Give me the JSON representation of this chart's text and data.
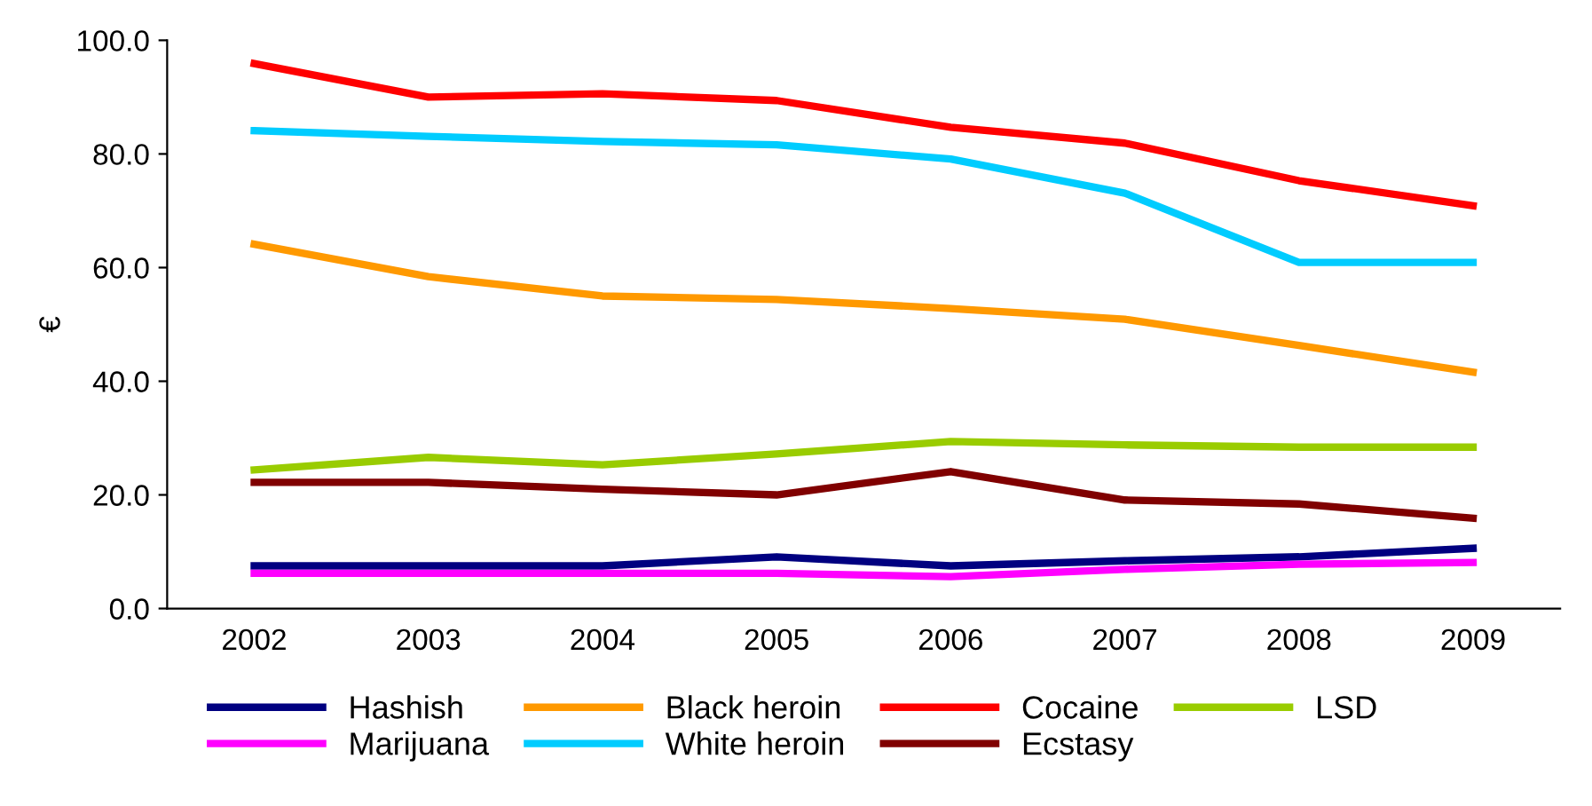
{
  "chart_data": {
    "type": "line",
    "ylabel": "€",
    "categories": [
      "2002",
      "2003",
      "2004",
      "2005",
      "2006",
      "2007",
      "2008",
      "2009"
    ],
    "series": [
      {
        "name": "Hashish",
        "color": "#000080",
        "values": [
          7.5,
          7.5,
          7.5,
          9.1,
          7.5,
          8.4,
          9.1,
          10.6
        ]
      },
      {
        "name": "Marijuana",
        "color": "#ff00ff",
        "values": [
          6.2,
          6.2,
          6.2,
          6.2,
          5.6,
          6.9,
          7.8,
          8.1
        ]
      },
      {
        "name": "Black heroin",
        "color": "#ff9900",
        "values": [
          64.1,
          58.4,
          55.0,
          54.4,
          52.8,
          50.9,
          46.3,
          41.6
        ]
      },
      {
        "name": "White heroin",
        "color": "#00ccff",
        "values": [
          84.1,
          83.1,
          82.2,
          81.6,
          79.1,
          73.1,
          60.9,
          60.9
        ]
      },
      {
        "name": "Cocaine",
        "color": "#ff0000",
        "values": [
          95.9,
          90.0,
          90.6,
          89.4,
          84.7,
          81.9,
          75.3,
          70.9
        ]
      },
      {
        "name": "Ecstasy",
        "color": "#800000",
        "values": [
          22.2,
          22.2,
          21.0,
          20.0,
          24.1,
          19.1,
          18.4,
          15.9
        ]
      },
      {
        "name": "LSD",
        "color": "#99cc00",
        "values": [
          24.4,
          26.6,
          25.3,
          27.2,
          29.4,
          28.8,
          28.4,
          28.4
        ]
      }
    ],
    "ylim": [
      0,
      100
    ],
    "yticks": [
      {
        "value": 0,
        "label": "0.0"
      },
      {
        "value": 20,
        "label": "20.0"
      },
      {
        "value": 40,
        "label": "40.0"
      },
      {
        "value": 60,
        "label": "60.0"
      },
      {
        "value": 80,
        "label": "80.0"
      },
      {
        "value": 100,
        "label": "100.0"
      }
    ],
    "grid": false,
    "legend": "bottom",
    "marker": "none",
    "line_style": "solid"
  }
}
